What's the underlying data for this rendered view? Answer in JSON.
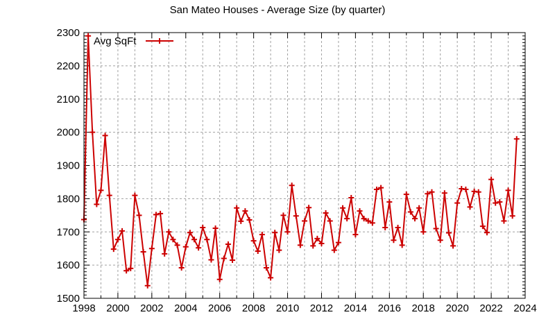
{
  "chart_data": {
    "type": "line",
    "title": "San Mateo Houses - Average Size (by quarter)",
    "xlabel": "",
    "ylabel": "",
    "xlim": [
      1998,
      2024
    ],
    "ylim": [
      1500,
      2300
    ],
    "x_start": 1998,
    "x_step": 0.25,
    "xticks": [
      "1998",
      "2000",
      "2002",
      "2004",
      "2006",
      "2008",
      "2010",
      "2012",
      "2014",
      "2016",
      "2018",
      "2020",
      "2022",
      "2024"
    ],
    "yticks": [
      "1500",
      "1600",
      "1700",
      "1800",
      "1900",
      "2000",
      "2100",
      "2200",
      "2300"
    ],
    "grid": true,
    "legend_position": "top-left",
    "series": [
      {
        "name": "Avg SqFt",
        "color": "#cc0000",
        "marker": "plus",
        "values": [
          1737,
          2290,
          2000,
          1783,
          1825,
          1990,
          1810,
          1648,
          1677,
          1703,
          1583,
          1590,
          1810,
          1750,
          1640,
          1538,
          1650,
          1752,
          1755,
          1634,
          1700,
          1677,
          1660,
          1592,
          1655,
          1698,
          1677,
          1652,
          1713,
          1677,
          1616,
          1711,
          1557,
          1620,
          1663,
          1615,
          1772,
          1732,
          1763,
          1736,
          1673,
          1642,
          1692,
          1592,
          1562,
          1698,
          1645,
          1750,
          1700,
          1840,
          1748,
          1660,
          1733,
          1773,
          1658,
          1680,
          1665,
          1757,
          1733,
          1645,
          1668,
          1772,
          1740,
          1803,
          1692,
          1763,
          1740,
          1733,
          1727,
          1828,
          1833,
          1713,
          1790,
          1675,
          1713,
          1660,
          1813,
          1760,
          1740,
          1772,
          1700,
          1815,
          1820,
          1710,
          1675,
          1817,
          1697,
          1658,
          1787,
          1830,
          1828,
          1775,
          1822,
          1820,
          1717,
          1698,
          1858,
          1787,
          1790,
          1733,
          1825,
          1748,
          1980
        ]
      }
    ]
  }
}
